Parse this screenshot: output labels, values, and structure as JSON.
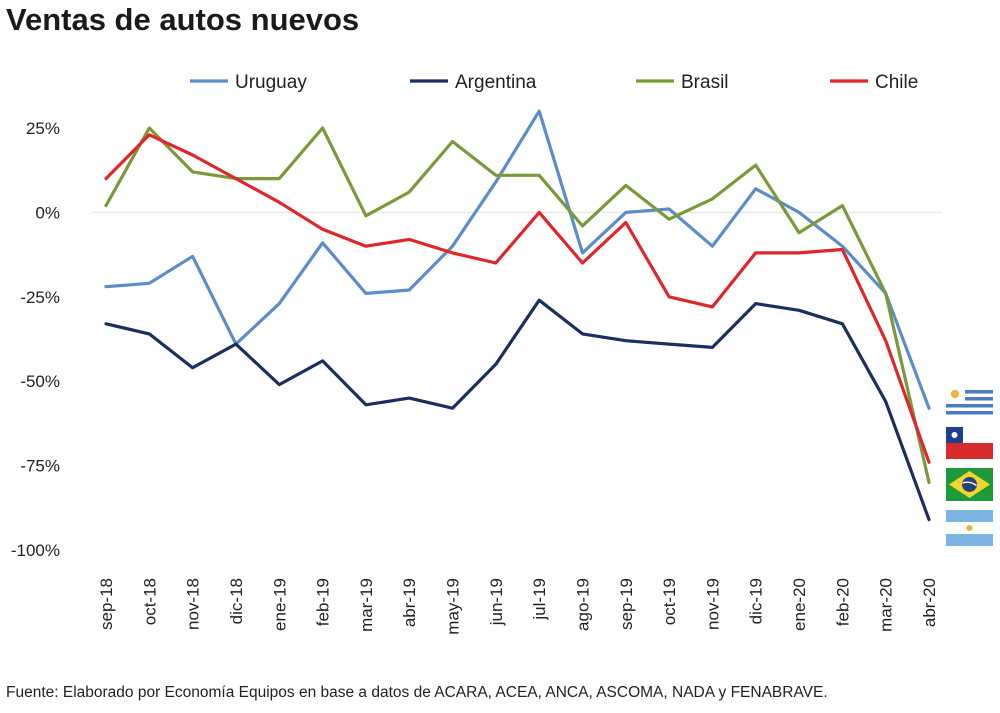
{
  "chart_data": {
    "type": "line",
    "title": "Ventas de autos nuevos",
    "xlabel": "",
    "ylabel": "",
    "ylim": [
      -100,
      25
    ],
    "yticks": [
      25,
      0,
      -25,
      -50,
      -75,
      -100
    ],
    "ytick_labels": [
      "25%",
      "0%",
      "-25%",
      "-50%",
      "-75%",
      "-100%"
    ],
    "categories": [
      "sep-18",
      "oct-18",
      "nov-18",
      "dic-18",
      "ene-19",
      "feb-19",
      "mar-19",
      "abr-19",
      "may-19",
      "jun-19",
      "jul-19",
      "ago-19",
      "sep-19",
      "oct-19",
      "nov-19",
      "dic-19",
      "ene-20",
      "feb-20",
      "mar-20",
      "abr-20"
    ],
    "legend_position": "top",
    "series": [
      {
        "name": "Uruguay",
        "color": "#5b8ec6",
        "values": [
          -22,
          -21,
          -13,
          -39,
          -27,
          -9,
          -24,
          -23,
          -10,
          9,
          30,
          -12,
          0,
          1,
          -10,
          7,
          0,
          -10,
          -24,
          -58
        ]
      },
      {
        "name": "Argentina",
        "color": "#1b2f5e",
        "values": [
          -33,
          -36,
          -46,
          -39,
          -51,
          -44,
          -57,
          -55,
          -58,
          -45,
          -26,
          -36,
          -38,
          -39,
          -40,
          -27,
          -29,
          -33,
          -56,
          -91
        ]
      },
      {
        "name": "Brasil",
        "color": "#7a9a3a",
        "values": [
          2,
          25,
          12,
          10,
          10,
          25,
          -1,
          6,
          21,
          11,
          11,
          -4,
          8,
          -2,
          4,
          14,
          -6,
          2,
          -24,
          -80
        ]
      },
      {
        "name": "Chile",
        "color": "#e0262a",
        "values": [
          10,
          23,
          17,
          10,
          3,
          -5,
          -10,
          -8,
          -12,
          -15,
          0,
          -15,
          -3,
          -25,
          -28,
          -12,
          -12,
          -11,
          -38,
          -74
        ]
      }
    ]
  },
  "source": "Fuente: Elaborado por Economía Equipos en base a datos de ACARA, ACEA, ANCA, ASCOMA, NADA y FENABRAVE.",
  "flags": {
    "uruguay": "uruguay-flag-icon",
    "chile": "chile-flag-icon",
    "brasil": "brazil-flag-icon",
    "argentina": "argentina-flag-icon"
  }
}
